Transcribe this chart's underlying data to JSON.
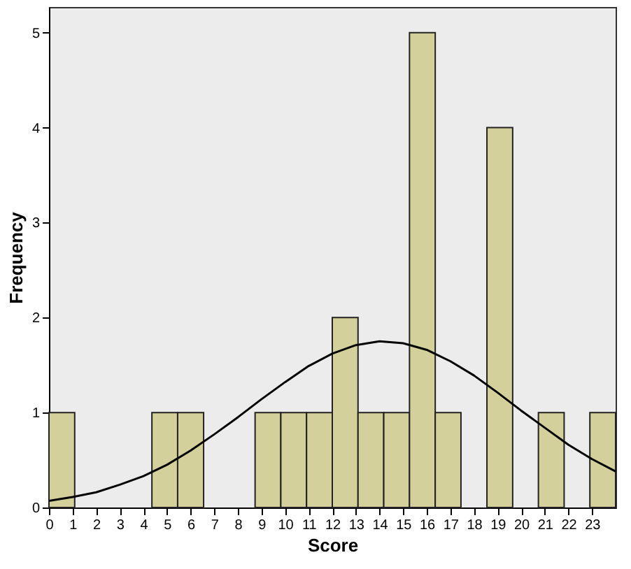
{
  "chart_data": {
    "type": "histogram",
    "xlabel": "Score",
    "ylabel": "Frequency",
    "xlim": [
      0,
      24
    ],
    "xticks": [
      0,
      1,
      2,
      3,
      4,
      5,
      6,
      7,
      8,
      9,
      10,
      11,
      12,
      13,
      14,
      15,
      16,
      17,
      18,
      19,
      20,
      21,
      22,
      23
    ],
    "ylim": [
      0,
      5.27
    ],
    "yticks": [
      0,
      1,
      2,
      3,
      4,
      5
    ],
    "grid": false,
    "series": [
      {
        "type": "histogram",
        "color": "#d4d09b",
        "bins": [
          0,
          1.09,
          2.18,
          3.27,
          4.36,
          5.45,
          6.55,
          7.64,
          8.73,
          9.82,
          10.91,
          12,
          13.09,
          14.18,
          15.27,
          16.36,
          17.45,
          18.55,
          19.64,
          20.73,
          21.82,
          22.91,
          24
        ],
        "values": [
          1,
          0,
          0,
          0,
          1,
          1,
          0,
          0,
          1,
          1,
          1,
          2,
          1,
          1,
          5,
          1,
          0,
          4,
          0,
          1,
          0,
          1
        ]
      },
      {
        "type": "line",
        "color": "#000000",
        "x": [
          0,
          1,
          2,
          3,
          4,
          5,
          6,
          7,
          8,
          9,
          10,
          11,
          12,
          13,
          14,
          15,
          16,
          17,
          18,
          19,
          20,
          21,
          22,
          23,
          24
        ],
        "values": [
          0.07,
          0.11,
          0.16,
          0.24,
          0.33,
          0.45,
          0.6,
          0.77,
          0.95,
          1.14,
          1.32,
          1.49,
          1.62,
          1.71,
          1.75,
          1.73,
          1.66,
          1.54,
          1.39,
          1.21,
          1.02,
          0.84,
          0.66,
          0.51,
          0.38
        ]
      }
    ]
  }
}
